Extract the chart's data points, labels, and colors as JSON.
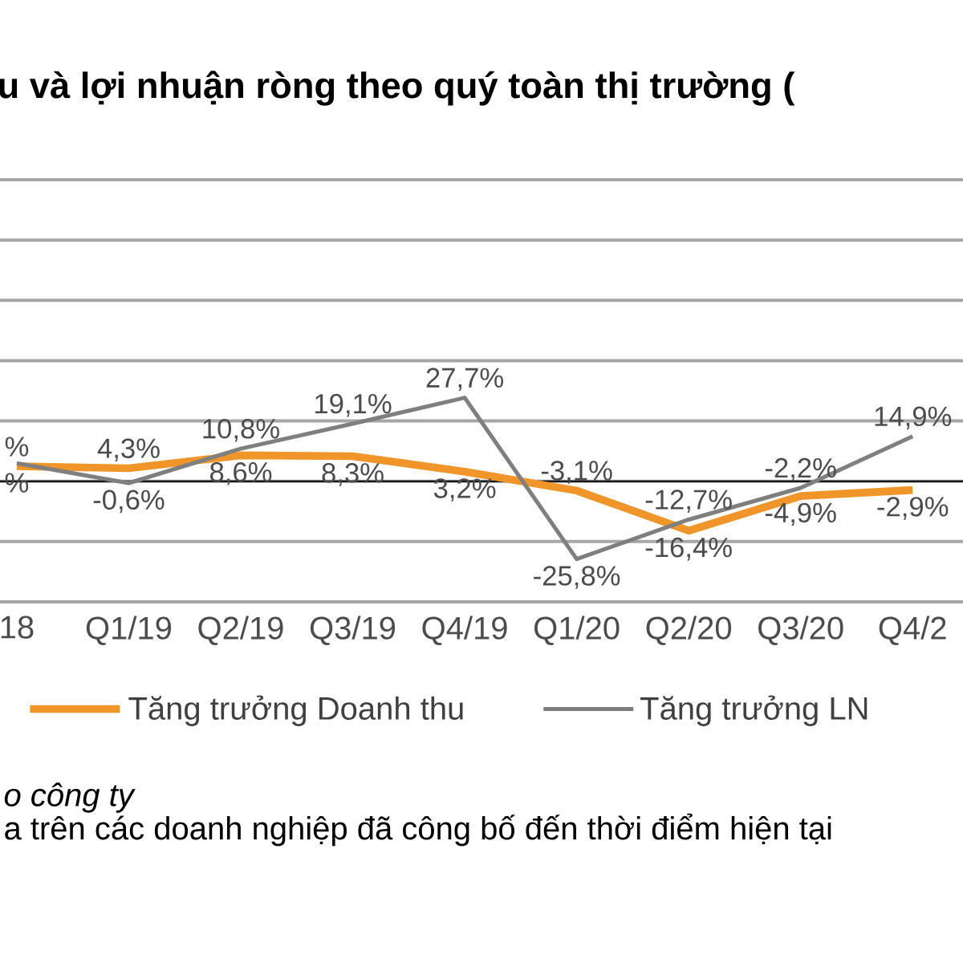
{
  "chart_data": {
    "type": "line",
    "title": "u và lợi nhuận ròng theo quý toàn thị trường (",
    "categories": [
      "18",
      "Q1/19",
      "Q2/19",
      "Q3/19",
      "Q4/19",
      "Q1/20",
      "Q2/20",
      "Q3/20",
      "Q4/2"
    ],
    "series": [
      {
        "name": "Tăng trưởng Doanh thu",
        "color": "#f0952a",
        "values": [
          5,
          4.3,
          8.6,
          8.3,
          3.2,
          -3.1,
          -16.4,
          -4.9,
          -2.9
        ],
        "value_labels": [
          "%",
          "4,3%",
          "8,6%",
          "8,3%",
          "3,2%",
          "-3,1%",
          "-16,4%",
          "-4,9%",
          "-2,9%"
        ]
      },
      {
        "name": "Tăng trưởng LN",
        "color": "#7f7f7f",
        "values": [
          6,
          -0.6,
          10.8,
          19.1,
          27.7,
          -25.8,
          -12.7,
          -2.2,
          14.9
        ],
        "value_labels": [
          "%",
          "-0,6%",
          "10,8%",
          "19,1%",
          "27,7%",
          "-25,8%",
          "-12,7%",
          "-2,2%",
          "14,9%"
        ]
      }
    ],
    "ylim": [
      -40,
      100
    ],
    "yticks": [
      {
        "value": -40,
        "label": null
      },
      {
        "value": -20,
        "label": null
      },
      {
        "value": 0,
        "label": null
      },
      {
        "value": 20,
        "label": null
      },
      {
        "value": 40,
        "label": null
      },
      {
        "value": 60,
        "label": null
      },
      {
        "value": 80,
        "label": null
      },
      {
        "value": 100,
        "label": null
      }
    ],
    "tick_labels": "x",
    "grid": "y",
    "legend": "bottom",
    "marker": "none",
    "line_style": "solid",
    "annotations": [
      "o công ty",
      "a trên các doanh nghiệp đã công bố đến thời điểm hiện tại"
    ]
  }
}
